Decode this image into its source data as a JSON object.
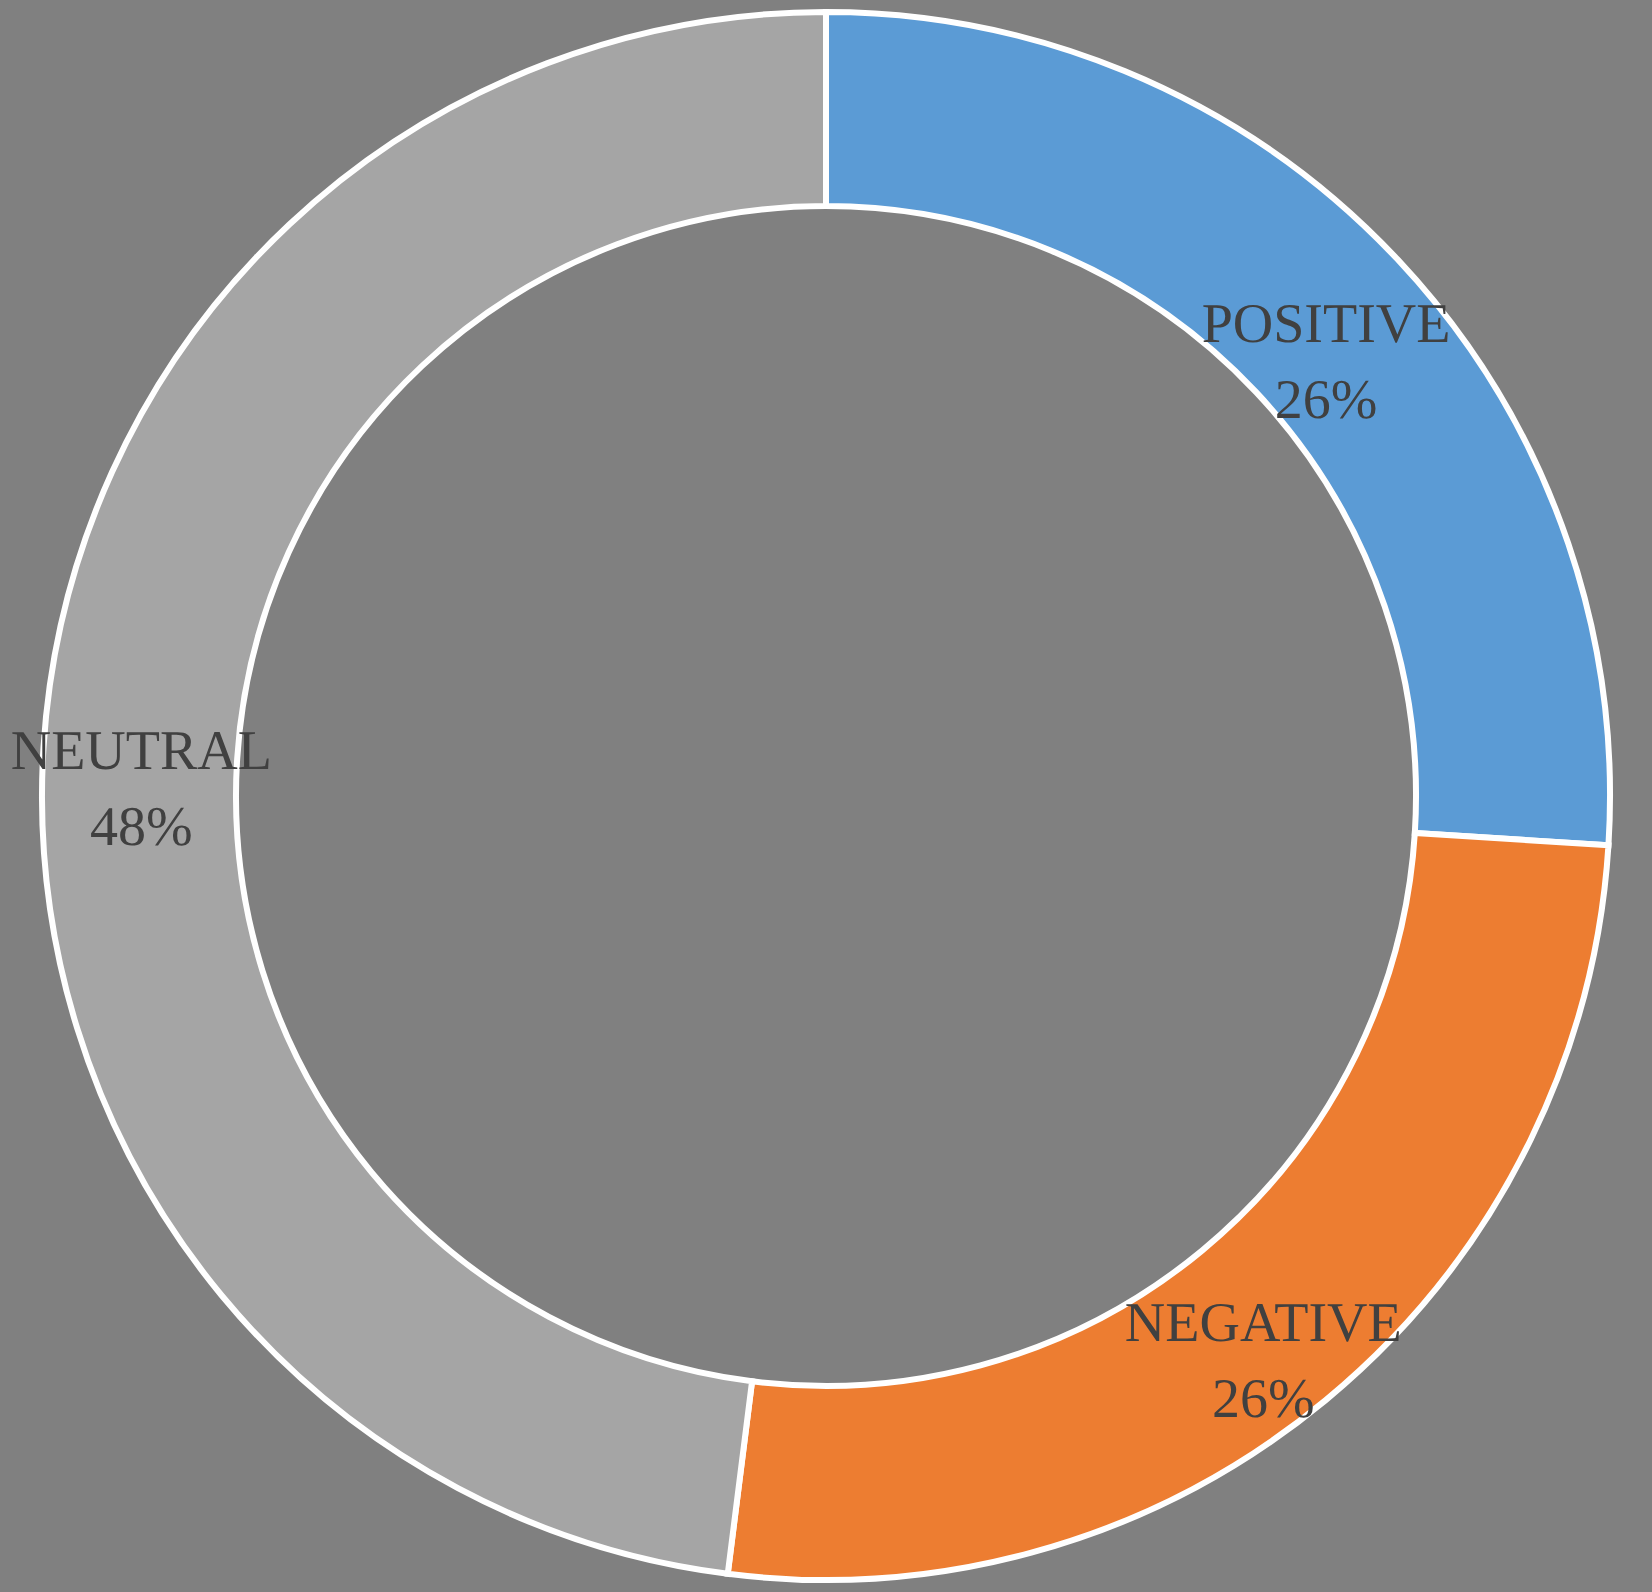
{
  "chart_data": {
    "type": "donut",
    "categories": [
      "POSITIVE",
      "NEGATIVE",
      "NEUTRAL"
    ],
    "values": [
      26,
      26,
      48
    ],
    "colors": [
      "#5b9bd5",
      "#ed7d31",
      "#a5a5a5"
    ],
    "value_labels": [
      "26%",
      "26%",
      "48%"
    ]
  }
}
